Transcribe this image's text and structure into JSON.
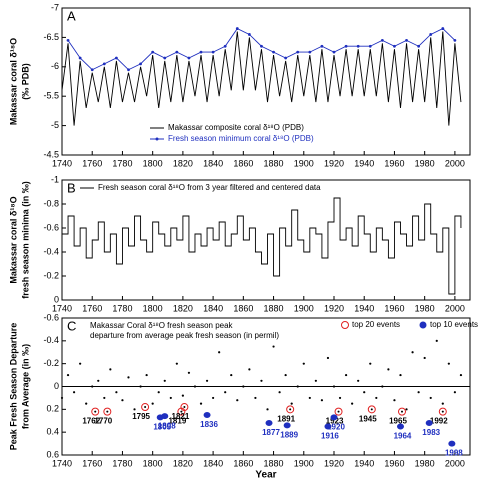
{
  "chart_data": [
    {
      "type": "line",
      "panel": "A",
      "ylabel": [
        "Makassar coral δ¹⁸O",
        "(‰ PDB)"
      ],
      "xlim": [
        1740,
        2010
      ],
      "xticks": [
        1740,
        1760,
        1780,
        1800,
        1820,
        1840,
        1860,
        1880,
        1900,
        1920,
        1940,
        1960,
        1980,
        2000
      ],
      "ylim": [
        -4.5,
        -7
      ],
      "yticks": [
        -4.5,
        -5,
        -5.5,
        -6,
        -6.5,
        -7
      ],
      "series": [
        {
          "name": "Makassar composite coral δ¹⁸O (PDB)",
          "color": "#000000",
          "markers": false,
          "x": [
            1740,
            1744,
            1748,
            1752,
            1756,
            1760,
            1764,
            1768,
            1772,
            1776,
            1780,
            1784,
            1788,
            1792,
            1796,
            1800,
            1804,
            1808,
            1812,
            1816,
            1820,
            1824,
            1828,
            1832,
            1836,
            1840,
            1844,
            1848,
            1852,
            1856,
            1860,
            1864,
            1868,
            1872,
            1876,
            1880,
            1884,
            1888,
            1892,
            1896,
            1900,
            1904,
            1908,
            1912,
            1916,
            1920,
            1924,
            1928,
            1932,
            1936,
            1940,
            1944,
            1948,
            1952,
            1956,
            1960,
            1964,
            1968,
            1972,
            1976,
            1980,
            1984,
            1988,
            1992,
            1996,
            2000,
            2004
          ],
          "values": [
            -5.6,
            -6.4,
            -5.0,
            -6.1,
            -5.3,
            -5.9,
            -5.4,
            -6.0,
            -5.3,
            -6.1,
            -5.4,
            -5.9,
            -5.4,
            -6.0,
            -5.5,
            -6.2,
            -5.3,
            -6.1,
            -5.4,
            -6.2,
            -5.4,
            -6.1,
            -5.5,
            -6.2,
            -5.4,
            -6.2,
            -5.5,
            -6.3,
            -5.6,
            -6.6,
            -5.6,
            -6.5,
            -5.6,
            -6.3,
            -5.4,
            -6.2,
            -5.5,
            -6.1,
            -5.4,
            -6.2,
            -5.5,
            -6.2,
            -5.4,
            -6.3,
            -5.4,
            -6.2,
            -5.5,
            -6.3,
            -5.5,
            -6.3,
            -5.5,
            -6.3,
            -5.5,
            -6.4,
            -5.4,
            -6.3,
            -5.3,
            -6.4,
            -5.4,
            -6.3,
            -5.4,
            -6.5,
            -5.3,
            -6.6,
            -5.0,
            -6.4,
            -5.4
          ]
        },
        {
          "name": "Fresh season minimum coral δ¹⁸O (PDB)",
          "color": "#1f2fbf",
          "markers": true,
          "x": [
            1744,
            1752,
            1760,
            1768,
            1776,
            1784,
            1792,
            1800,
            1808,
            1816,
            1824,
            1832,
            1840,
            1848,
            1856,
            1864,
            1872,
            1880,
            1888,
            1896,
            1904,
            1912,
            1920,
            1928,
            1936,
            1944,
            1952,
            1960,
            1968,
            1976,
            1984,
            1992,
            2000
          ],
          "values": [
            -6.45,
            -6.15,
            -5.95,
            -6.05,
            -6.15,
            -5.95,
            -6.05,
            -6.25,
            -6.15,
            -6.25,
            -6.15,
            -6.25,
            -6.25,
            -6.35,
            -6.65,
            -6.55,
            -6.35,
            -6.25,
            -6.15,
            -6.25,
            -6.25,
            -6.35,
            -6.25,
            -6.35,
            -6.35,
            -6.35,
            -6.45,
            -6.35,
            -6.45,
            -6.35,
            -6.55,
            -6.65,
            -6.45
          ]
        }
      ]
    },
    {
      "type": "step",
      "panel": "B",
      "ylabel": [
        "Makassar coral δ¹⁸O",
        "fresh season minima (in ‰)"
      ],
      "xlim": [
        1740,
        2010
      ],
      "xticks": [
        1740,
        1760,
        1780,
        1800,
        1820,
        1840,
        1860,
        1880,
        1900,
        1920,
        1940,
        1960,
        1980,
        2000
      ],
      "ylim": [
        0,
        -1
      ],
      "yticks": [
        0,
        -0.2,
        -0.4,
        -0.6,
        -0.8,
        -1
      ],
      "series": [
        {
          "name": "Fresh season coral δ¹⁸O from 3 year filtered and centered data",
          "color": "#000000",
          "x": [
            1740,
            1744,
            1748,
            1752,
            1756,
            1760,
            1764,
            1768,
            1772,
            1776,
            1780,
            1784,
            1788,
            1792,
            1796,
            1800,
            1804,
            1808,
            1812,
            1816,
            1820,
            1824,
            1828,
            1832,
            1836,
            1840,
            1844,
            1848,
            1852,
            1856,
            1860,
            1864,
            1868,
            1872,
            1876,
            1880,
            1884,
            1888,
            1892,
            1896,
            1900,
            1904,
            1908,
            1912,
            1916,
            1920,
            1924,
            1928,
            1932,
            1936,
            1940,
            1944,
            1948,
            1952,
            1956,
            1960,
            1964,
            1968,
            1972,
            1976,
            1980,
            1984,
            1988,
            1992,
            1996,
            2000,
            2004
          ],
          "values": [
            -0.55,
            -0.7,
            -0.45,
            -0.6,
            -0.35,
            -0.5,
            -0.65,
            -0.4,
            -0.55,
            -0.3,
            -0.6,
            -0.45,
            -0.7,
            -0.5,
            -0.4,
            -0.65,
            -0.55,
            -0.45,
            -0.6,
            -0.5,
            -0.7,
            -0.4,
            -0.55,
            -0.45,
            -0.6,
            -0.5,
            -0.65,
            -0.45,
            -0.55,
            -0.7,
            -0.5,
            -0.6,
            -0.4,
            -0.3,
            -0.55,
            -0.2,
            -0.6,
            -0.45,
            -0.75,
            -0.5,
            -0.4,
            -0.6,
            -0.55,
            -0.35,
            -0.65,
            -0.85,
            -0.5,
            -0.6,
            -0.45,
            -0.7,
            -0.55,
            -0.4,
            -0.6,
            -0.5,
            -0.35,
            -0.65,
            -0.55,
            -0.45,
            -0.7,
            -0.5,
            -0.8,
            -0.55,
            -0.4,
            -0.6,
            -0.05,
            -0.7,
            -0.6
          ]
        }
      ]
    },
    {
      "type": "scatter",
      "panel": "C",
      "ylabel": [
        "Peak Fresh Season Departure",
        "from Average (in ‰)"
      ],
      "xlabel": "Year",
      "note": [
        "Makassar Coral δ¹⁸O fresh season peak",
        "departure from average peak fresh season (in permil)"
      ],
      "xlim": [
        1740,
        2010
      ],
      "xticks": [
        1740,
        1760,
        1780,
        1800,
        1820,
        1840,
        1860,
        1880,
        1900,
        1920,
        1940,
        1960,
        1980,
        2000
      ],
      "ylim": [
        0.6,
        -0.6
      ],
      "yticks": [
        -0.6,
        -0.4,
        -0.2,
        0,
        0.2,
        0.4,
        0.6
      ],
      "zero_line": true,
      "series": [
        {
          "color": "#000000",
          "marker": "dot",
          "x": [
            1740,
            1744,
            1748,
            1752,
            1756,
            1760,
            1764,
            1768,
            1772,
            1776,
            1780,
            1784,
            1788,
            1792,
            1796,
            1800,
            1804,
            1808,
            1812,
            1816,
            1820,
            1824,
            1828,
            1832,
            1836,
            1840,
            1844,
            1848,
            1852,
            1856,
            1860,
            1864,
            1868,
            1872,
            1876,
            1880,
            1884,
            1888,
            1892,
            1896,
            1900,
            1904,
            1908,
            1912,
            1916,
            1920,
            1924,
            1928,
            1932,
            1936,
            1940,
            1944,
            1948,
            1952,
            1956,
            1960,
            1964,
            1968,
            1972,
            1976,
            1980,
            1984,
            1988,
            1992,
            1996,
            2000,
            2004
          ],
          "values": [
            0.1,
            -0.1,
            0.05,
            -0.2,
            0.15,
            0.0,
            -0.05,
            0.1,
            -0.15,
            0.05,
            0.12,
            -0.08,
            0.2,
            0.0,
            -0.1,
            0.15,
            0.05,
            -0.05,
            0.1,
            -0.2,
            0.08,
            -0.12,
            0.0,
            0.15,
            -0.05,
            0.1,
            -0.3,
            0.05,
            -0.1,
            0.12,
            0.0,
            -0.15,
            0.1,
            -0.05,
            0.2,
            -0.35,
            0.05,
            -0.1,
            0.15,
            0.0,
            -0.2,
            0.1,
            -0.05,
            0.12,
            -0.25,
            0.0,
            0.1,
            -0.1,
            0.15,
            -0.05,
            0.05,
            -0.2,
            0.1,
            0.0,
            -0.15,
            0.12,
            -0.1,
            0.2,
            -0.3,
            0.05,
            -0.25,
            0.1,
            -0.4,
            0.15,
            -0.2,
            0.05,
            -0.1
          ]
        },
        {
          "name": "top 20 events",
          "color": "#e02020",
          "marker": "open-circle",
          "label_color": "#000000",
          "x": [
            1762,
            1770,
            1795,
            1819,
            1821,
            1891,
            1923,
            1945,
            1965,
            1992
          ],
          "values": [
            0.22,
            0.22,
            0.18,
            0.22,
            0.18,
            0.2,
            0.22,
            0.2,
            0.22,
            0.22
          ]
        },
        {
          "name": "top 10 events",
          "color": "#1f2fbf",
          "marker": "filled-circle",
          "label_color": "#1f2fbf",
          "x": [
            1805,
            1808,
            1836,
            1877,
            1889,
            1916,
            1920,
            1964,
            1983,
            1998
          ],
          "values": [
            0.27,
            0.26,
            0.25,
            0.32,
            0.34,
            0.35,
            0.27,
            0.35,
            0.32,
            0.5
          ]
        }
      ]
    }
  ]
}
